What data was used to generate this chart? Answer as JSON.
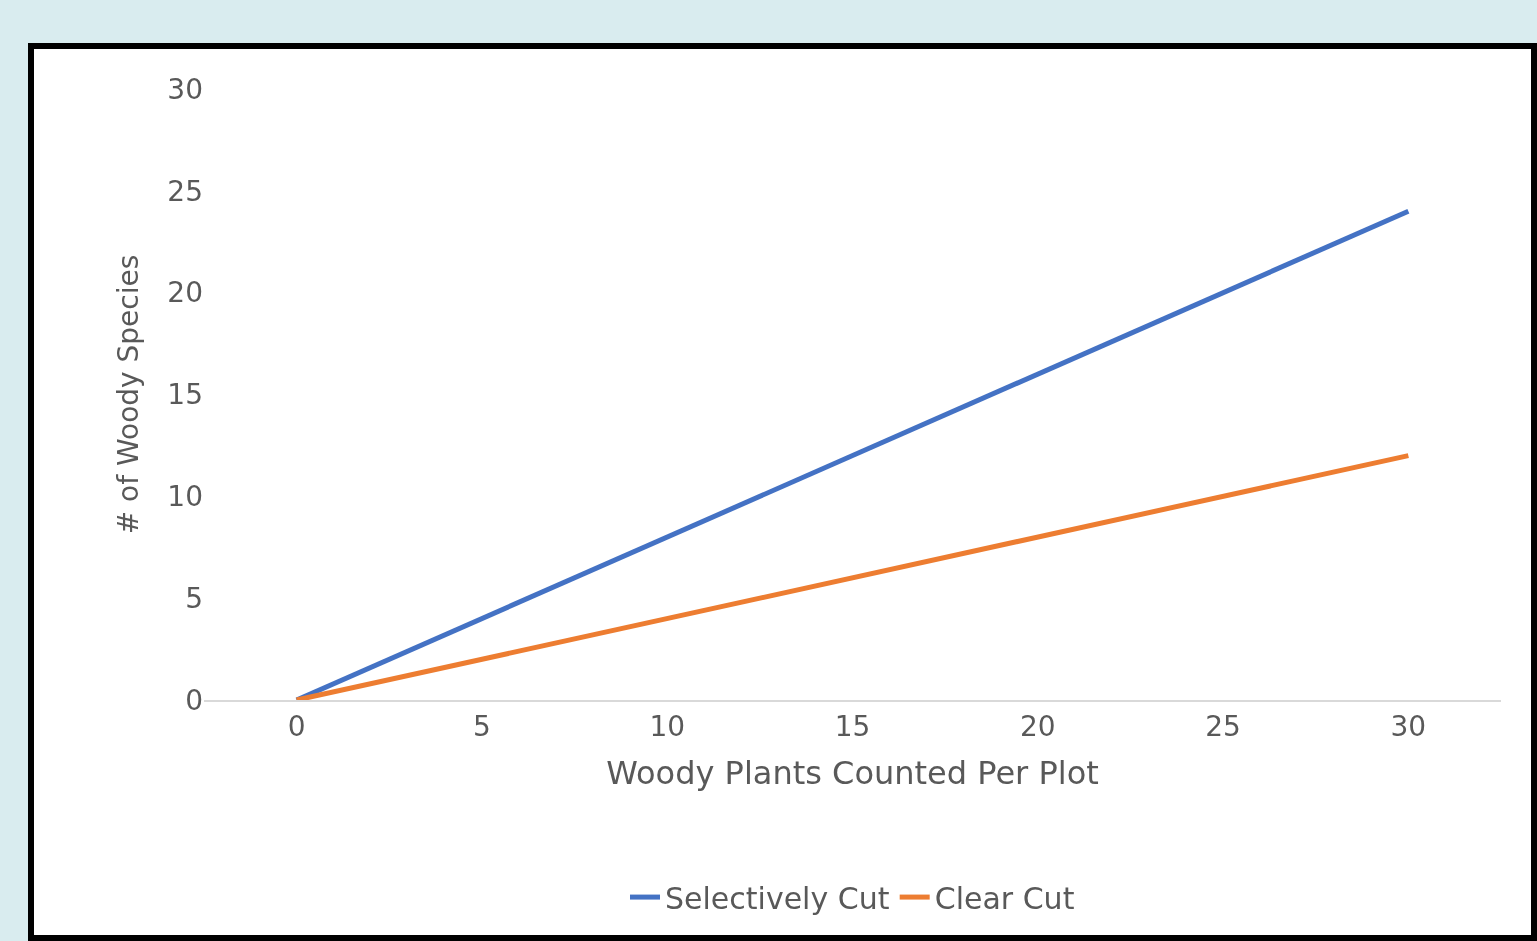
{
  "chart_data": {
    "type": "line",
    "xlabel": "Woody Plants Counted Per Plot",
    "ylabel": "# of Woody Species",
    "x": [
      0,
      30
    ],
    "series": [
      {
        "name": "Selectively Cut",
        "color": "#4472c4",
        "values": [
          0,
          24
        ]
      },
      {
        "name": "Clear Cut",
        "color": "#ed7d31",
        "values": [
          0,
          12
        ]
      }
    ],
    "xlim": [
      -2.5,
      32.5
    ],
    "xticks": [
      0,
      5,
      10,
      15,
      20,
      25,
      30
    ],
    "ylim": [
      0,
      30
    ],
    "yticks": [
      0,
      5,
      10,
      15,
      20,
      25,
      30
    ],
    "grid": false,
    "legend": "bottom",
    "marker": "none",
    "line_style": "solid"
  }
}
